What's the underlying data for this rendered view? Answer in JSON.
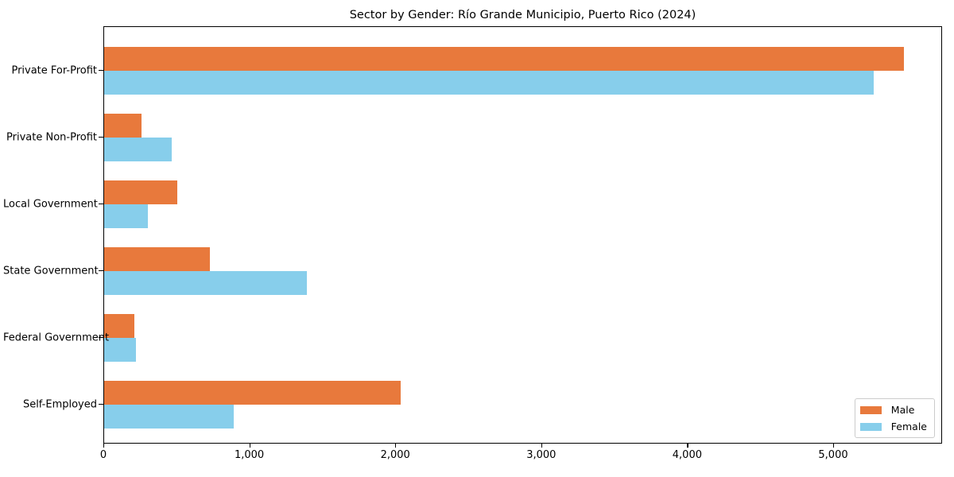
{
  "title": "Sector by Gender: Río Grande Municipio, Puerto Rico (2024)",
  "chart_data": {
    "type": "bar",
    "orientation": "horizontal",
    "title": "Sector by Gender: Río Grande Municipio, Puerto Rico (2024)",
    "categories": [
      "Private For-Profit",
      "Private Non-Profit",
      "Local Government",
      "State Government",
      "Federal Government",
      "Self-Employed"
    ],
    "series": [
      {
        "name": "Male",
        "color": "#E8793C",
        "values": [
          5480,
          255,
          500,
          725,
          205,
          2030
        ]
      },
      {
        "name": "Female",
        "color": "#87CEEB",
        "values": [
          5270,
          465,
          300,
          1390,
          220,
          890
        ]
      }
    ],
    "xlabel": "",
    "ylabel": "",
    "xlim": [
      0,
      5746
    ],
    "x_ticks": [
      0,
      1000,
      2000,
      3000,
      4000,
      5000
    ],
    "x_tick_labels": [
      "0",
      "1,000",
      "2,000",
      "3,000",
      "4,000",
      "5,000"
    ],
    "grid": false,
    "legend": {
      "position": "lower right",
      "entries": [
        "Male",
        "Female"
      ]
    }
  }
}
